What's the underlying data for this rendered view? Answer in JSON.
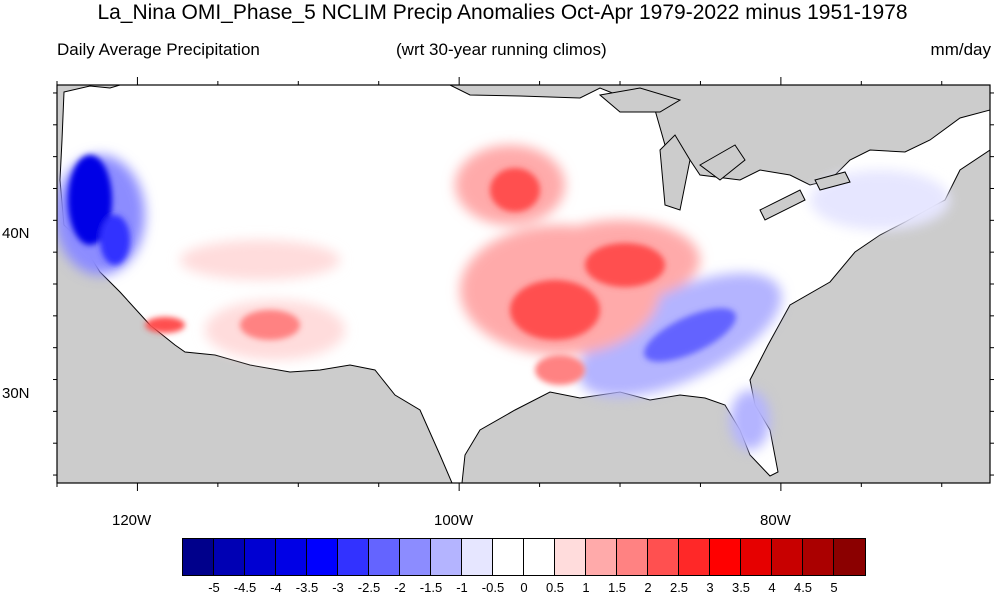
{
  "title": "La_Nina OMI_Phase_5 NCLIM Precip Anomalies Oct-Apr 1979-2022 minus 1951-1978",
  "subtitle_left": "Daily Average Precipitation",
  "subtitle_center": "(wrt 30-year running climos)",
  "subtitle_right": "mm/day",
  "map": {
    "lon_range": [
      -125,
      -67
    ],
    "lat_range": [
      24.5,
      49.5
    ],
    "lat_labels": [
      "40N",
      "30N"
    ],
    "lon_labels": [
      "120W",
      "100W",
      "80W"
    ],
    "land_color": "#ffffff",
    "outside_color": "#cccccc"
  },
  "colorbar": {
    "colors": [
      "#00008b",
      "#0000b4",
      "#0000d2",
      "#0000e6",
      "#0000ff",
      "#3232ff",
      "#6464ff",
      "#8c8cff",
      "#b4b4ff",
      "#e6e6ff",
      "#ffffff",
      "#ffffff",
      "#ffdcdc",
      "#ffaaaa",
      "#ff8282",
      "#ff5050",
      "#ff2828",
      "#ff0000",
      "#e60000",
      "#c80000",
      "#aa0000",
      "#8b0000"
    ],
    "labels": [
      "-5",
      "-4.5",
      "-4",
      "-3.5",
      "-3",
      "-2.5",
      "-2",
      "-1.5",
      "-1",
      "-0.5",
      "0",
      "0.5",
      "1",
      "1.5",
      "2",
      "2.5",
      "3",
      "3.5",
      "4",
      "4.5",
      "5"
    ]
  },
  "anomaly_regions": [
    {
      "name": "pacific-northwest-coast",
      "level": "strong-negative"
    },
    {
      "name": "southeast-gulf",
      "level": "moderate-negative"
    },
    {
      "name": "central-plains-midwest",
      "level": "moderate-positive"
    },
    {
      "name": "southwest-arizona",
      "level": "weak-positive"
    },
    {
      "name": "northeast",
      "level": "weak-negative"
    }
  ]
}
